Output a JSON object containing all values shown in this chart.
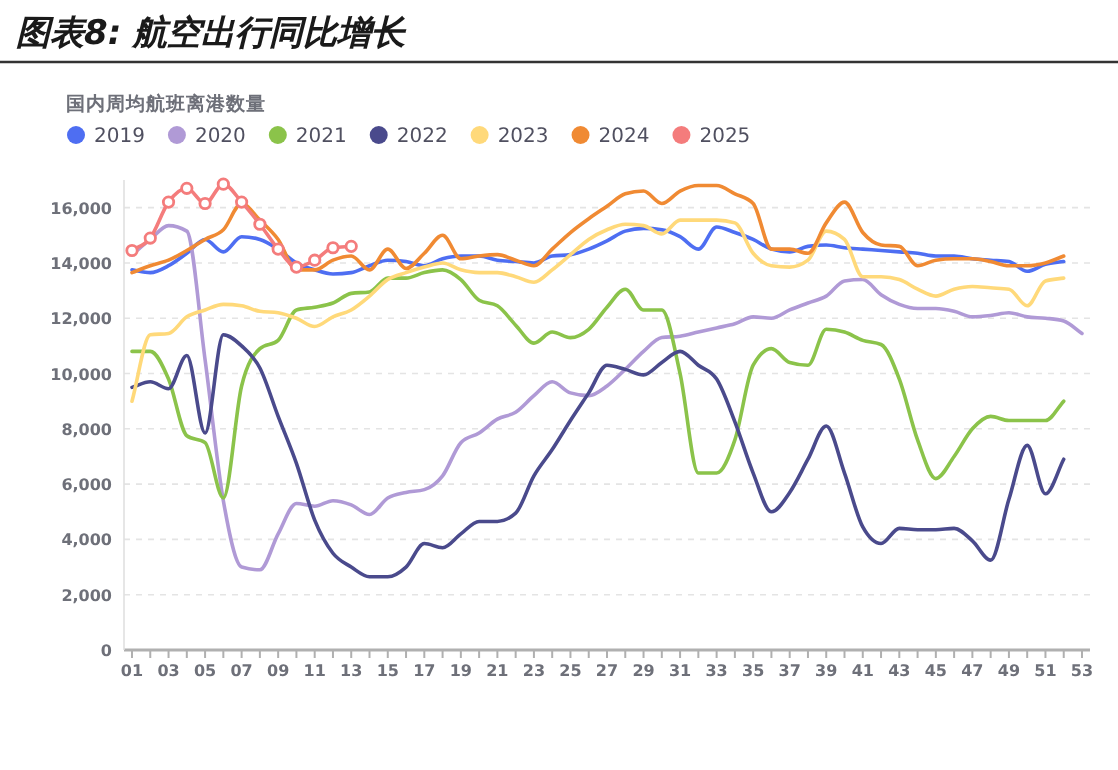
{
  "chart_data": {
    "type": "line",
    "title": "图表8: 航空出行同比增长",
    "ylabel": "国内周均航班离港数量",
    "categories": [
      "01",
      null,
      "03",
      null,
      "05",
      null,
      "07",
      null,
      "09",
      null,
      "11",
      null,
      "13",
      null,
      "15",
      null,
      "17",
      null,
      "19",
      null,
      "21",
      null,
      "23",
      null,
      "25",
      null,
      "27",
      null,
      "29",
      null,
      "31",
      null,
      "33",
      null,
      "35",
      null,
      "37",
      null,
      "39",
      null,
      "41",
      null,
      "43",
      null,
      "45",
      null,
      "47",
      null,
      "49",
      null,
      "51",
      null,
      "53"
    ],
    "ylim": [
      0,
      17000
    ],
    "yticks": [
      0,
      {
        "value": 2000,
        "label": "2,000"
      },
      {
        "value": 4000,
        "label": "4,000"
      },
      {
        "value": 6000,
        "label": "6,000"
      },
      {
        "value": 8000,
        "label": "8,000"
      },
      {
        "value": 10000,
        "label": "10,000"
      },
      {
        "value": 12000,
        "label": "12,000"
      },
      {
        "value": 14000,
        "label": "14,000"
      },
      {
        "value": 16000,
        "label": "16,000"
      }
    ],
    "grid": "y",
    "legend": "top left",
    "marker": "none",
    "line_style": "solid",
    "series": [
      {
        "name": "2019",
        "color": "#4e6ef2",
        "values": [
          13750,
          13650,
          13900,
          14350,
          14850,
          14400,
          14950,
          14850,
          14500,
          14000,
          13750,
          13600,
          13650,
          13900,
          14100,
          14050,
          13900,
          14150,
          14250,
          14250,
          14100,
          14050,
          14000,
          14250,
          14300,
          14500,
          14800,
          15150,
          15250,
          15200,
          14950,
          14500,
          15300,
          15100,
          14850,
          14500,
          14400,
          14600,
          14650,
          14550,
          14500,
          14450,
          14400,
          14350,
          14250,
          14250,
          14150,
          14100,
          14050,
          13700,
          13950,
          14050,
          null
        ]
      },
      {
        "name": "2020",
        "color": "#b09ad6",
        "values": [
          14300,
          14850,
          15350,
          15150,
          10500,
          5400,
          3000,
          2900,
          4200,
          5300,
          5200,
          5400,
          5250,
          4900,
          5500,
          5700,
          5800,
          6300,
          7500,
          7850,
          8350,
          8600,
          9200,
          9700,
          9300,
          9200,
          9550,
          10150,
          10800,
          11300,
          11350,
          11500,
          11650,
          11800,
          12050,
          12000,
          12300,
          12550,
          12800,
          13350,
          13400,
          12850,
          12500,
          12350,
          12350,
          12250,
          12050,
          12100,
          12200,
          12050,
          12000,
          11900,
          11450
        ]
      },
      {
        "name": "2021",
        "color": "#8bc34a",
        "values": [
          10800,
          10800,
          9800,
          7750,
          7500,
          5500,
          9550,
          10900,
          11200,
          12300,
          12400,
          12550,
          12900,
          12950,
          13450,
          13450,
          13650,
          13750,
          13400,
          12650,
          12450,
          11750,
          11100,
          11500,
          11300,
          11600,
          12400,
          13050,
          12300,
          12300,
          10000,
          6400,
          6400,
          7600,
          10300,
          10900,
          10400,
          10300,
          11600,
          11500,
          11200,
          11050,
          9800,
          7600,
          6200,
          7000,
          8000,
          8450,
          8300,
          8300,
          8300,
          9000,
          null
        ]
      },
      {
        "name": "2022",
        "color": "#4a4a8c",
        "values": [
          9500,
          9700,
          9450,
          10650,
          7850,
          11400,
          11000,
          10200,
          8450,
          6750,
          4700,
          3500,
          3000,
          2650,
          2650,
          3000,
          3850,
          3700,
          4200,
          4650,
          4650,
          4950,
          6300,
          7250,
          8300,
          9300,
          10300,
          10150,
          9950,
          10400,
          10800,
          10300,
          9800,
          8250,
          6400,
          5000,
          5700,
          6900,
          8100,
          6400,
          4450,
          3850,
          4400,
          4350,
          4350,
          4400,
          3950,
          3250,
          5450,
          7400,
          5650,
          6900,
          null
        ]
      },
      {
        "name": "2023",
        "color": "#ffd97a",
        "values": [
          9000,
          11400,
          11450,
          12050,
          12300,
          12500,
          12450,
          12250,
          12200,
          12000,
          11700,
          12050,
          12300,
          12800,
          13400,
          13650,
          13850,
          14000,
          13750,
          13650,
          13650,
          13500,
          13300,
          13750,
          14300,
          14850,
          15200,
          15400,
          15350,
          15050,
          15550,
          15550,
          15550,
          15450,
          14350,
          13900,
          13850,
          14100,
          15150,
          14850,
          13500,
          13500,
          13400,
          13050,
          12800,
          13050,
          13150,
          13100,
          13050,
          12450,
          13350,
          13450,
          null
        ]
      },
      {
        "name": "2024",
        "color": "#f08a33",
        "values": [
          13650,
          13900,
          14100,
          14450,
          14850,
          15200,
          16150,
          15550,
          14850,
          13750,
          13750,
          14100,
          14250,
          13750,
          14500,
          13800,
          14350,
          15000,
          14150,
          14250,
          14300,
          14100,
          13900,
          14500,
          15100,
          15600,
          16050,
          16500,
          16600,
          16150,
          16600,
          16800,
          16800,
          16500,
          16150,
          14500,
          14500,
          14350,
          15450,
          16200,
          15100,
          14650,
          14600,
          13900,
          14100,
          14150,
          14150,
          14050,
          13900,
          13900,
          14000,
          14250,
          null
        ]
      },
      {
        "name": "2025",
        "color": "#f47c7c",
        "marker": "circle",
        "values": [
          14450,
          14900,
          16200,
          16700,
          16150,
          16850,
          16200,
          15400,
          14500,
          13850,
          14100,
          14550,
          14600,
          null,
          null,
          null,
          null,
          null,
          null,
          null,
          null,
          null,
          null,
          null,
          null,
          null,
          null,
          null,
          null,
          null,
          null,
          null,
          null,
          null,
          null,
          null,
          null,
          null,
          null,
          null,
          null,
          null,
          null,
          null,
          null,
          null,
          null,
          null,
          null,
          null,
          null,
          null,
          null
        ]
      }
    ]
  }
}
